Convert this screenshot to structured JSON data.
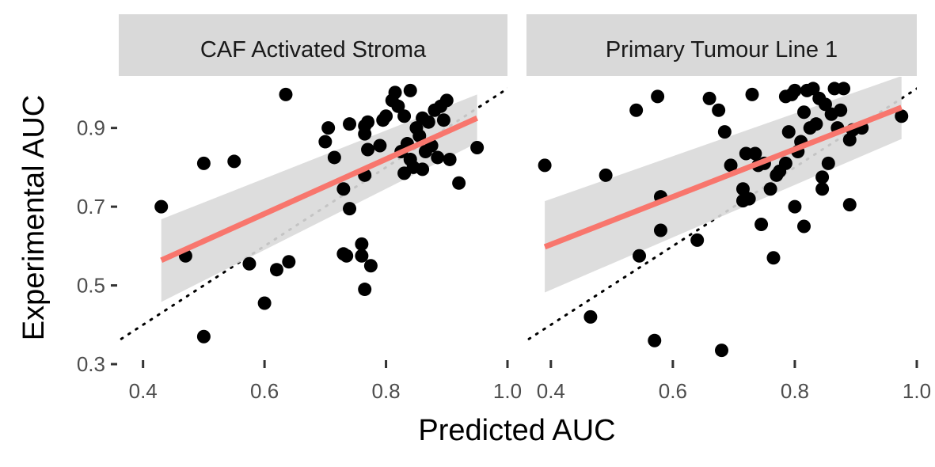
{
  "chart_data": {
    "type": "scatter",
    "xlabel": "Predicted AUC",
    "ylabel": "Experimental AUC",
    "xlim": [
      0.36,
      1.0
    ],
    "ylim": [
      0.28,
      1.03
    ],
    "x_ticks": [
      "0.4",
      "0.6",
      "0.8",
      "1.0"
    ],
    "y_ticks": [
      "0.3",
      "0.5",
      "0.7",
      "0.9"
    ],
    "grid": false,
    "reference_line": {
      "type": "identity",
      "style": "dotted",
      "color": "#000000"
    },
    "colors": {
      "points": "#000000",
      "fit_line": "#F8766D",
      "ribbon": "#D9D9D9",
      "strip_bg": "#D9D9D9"
    },
    "panels": [
      {
        "title": "CAF Activated Stroma",
        "fit": {
          "x": [
            0.43,
            0.95
          ],
          "y": [
            0.564,
            0.925
          ],
          "ci_low": [
            0.458,
            0.862
          ],
          "ci_high": [
            0.668,
            0.985
          ]
        },
        "points": [
          {
            "x": 0.43,
            "y": 0.7
          },
          {
            "x": 0.47,
            "y": 0.575
          },
          {
            "x": 0.5,
            "y": 0.37
          },
          {
            "x": 0.5,
            "y": 0.81
          },
          {
            "x": 0.55,
            "y": 0.815
          },
          {
            "x": 0.575,
            "y": 0.555
          },
          {
            "x": 0.6,
            "y": 0.455
          },
          {
            "x": 0.62,
            "y": 0.54
          },
          {
            "x": 0.635,
            "y": 0.985
          },
          {
            "x": 0.64,
            "y": 0.56
          },
          {
            "x": 0.7,
            "y": 0.865
          },
          {
            "x": 0.705,
            "y": 0.9
          },
          {
            "x": 0.715,
            "y": 0.825
          },
          {
            "x": 0.73,
            "y": 0.745
          },
          {
            "x": 0.73,
            "y": 0.58
          },
          {
            "x": 0.735,
            "y": 0.575
          },
          {
            "x": 0.74,
            "y": 0.91
          },
          {
            "x": 0.74,
            "y": 0.695
          },
          {
            "x": 0.76,
            "y": 0.605
          },
          {
            "x": 0.76,
            "y": 0.575
          },
          {
            "x": 0.765,
            "y": 0.905
          },
          {
            "x": 0.765,
            "y": 0.885
          },
          {
            "x": 0.765,
            "y": 0.78
          },
          {
            "x": 0.765,
            "y": 0.49
          },
          {
            "x": 0.77,
            "y": 0.915
          },
          {
            "x": 0.77,
            "y": 0.845
          },
          {
            "x": 0.775,
            "y": 0.55
          },
          {
            "x": 0.79,
            "y": 0.855
          },
          {
            "x": 0.795,
            "y": 0.92
          },
          {
            "x": 0.8,
            "y": 0.93
          },
          {
            "x": 0.81,
            "y": 0.97
          },
          {
            "x": 0.815,
            "y": 0.99
          },
          {
            "x": 0.82,
            "y": 0.955
          },
          {
            "x": 0.825,
            "y": 0.84
          },
          {
            "x": 0.83,
            "y": 0.785
          },
          {
            "x": 0.83,
            "y": 0.93
          },
          {
            "x": 0.835,
            "y": 0.86
          },
          {
            "x": 0.84,
            "y": 0.82
          },
          {
            "x": 0.84,
            "y": 0.995
          },
          {
            "x": 0.845,
            "y": 0.8
          },
          {
            "x": 0.85,
            "y": 0.9
          },
          {
            "x": 0.855,
            "y": 0.88
          },
          {
            "x": 0.86,
            "y": 0.925
          },
          {
            "x": 0.86,
            "y": 0.795
          },
          {
            "x": 0.865,
            "y": 0.84
          },
          {
            "x": 0.87,
            "y": 0.915
          },
          {
            "x": 0.875,
            "y": 0.855
          },
          {
            "x": 0.88,
            "y": 0.945
          },
          {
            "x": 0.885,
            "y": 0.825
          },
          {
            "x": 0.89,
            "y": 0.955
          },
          {
            "x": 0.895,
            "y": 0.92
          },
          {
            "x": 0.9,
            "y": 0.97
          },
          {
            "x": 0.905,
            "y": 0.82
          },
          {
            "x": 0.92,
            "y": 0.76
          },
          {
            "x": 0.95,
            "y": 0.85
          }
        ]
      },
      {
        "title": "Primary Tumour Line 1",
        "fit": {
          "x": [
            0.39,
            0.975
          ],
          "y": [
            0.598,
            0.952
          ],
          "ci_low": [
            0.482,
            0.872
          ],
          "ci_high": [
            0.714,
            1.032
          ]
        },
        "points": [
          {
            "x": 0.39,
            "y": 0.805
          },
          {
            "x": 0.465,
            "y": 0.42
          },
          {
            "x": 0.49,
            "y": 0.78
          },
          {
            "x": 0.54,
            "y": 0.945
          },
          {
            "x": 0.545,
            "y": 0.575
          },
          {
            "x": 0.57,
            "y": 0.36
          },
          {
            "x": 0.575,
            "y": 0.98
          },
          {
            "x": 0.58,
            "y": 0.725
          },
          {
            "x": 0.58,
            "y": 0.64
          },
          {
            "x": 0.64,
            "y": 0.615
          },
          {
            "x": 0.66,
            "y": 0.975
          },
          {
            "x": 0.675,
            "y": 0.945
          },
          {
            "x": 0.68,
            "y": 0.335
          },
          {
            "x": 0.685,
            "y": 0.89
          },
          {
            "x": 0.695,
            "y": 0.805
          },
          {
            "x": 0.715,
            "y": 0.745
          },
          {
            "x": 0.715,
            "y": 0.715
          },
          {
            "x": 0.72,
            "y": 0.835
          },
          {
            "x": 0.725,
            "y": 0.72
          },
          {
            "x": 0.73,
            "y": 0.985
          },
          {
            "x": 0.735,
            "y": 0.835
          },
          {
            "x": 0.74,
            "y": 0.805
          },
          {
            "x": 0.745,
            "y": 0.655
          },
          {
            "x": 0.75,
            "y": 0.81
          },
          {
            "x": 0.76,
            "y": 0.745
          },
          {
            "x": 0.765,
            "y": 0.57
          },
          {
            "x": 0.77,
            "y": 0.78
          },
          {
            "x": 0.775,
            "y": 0.79
          },
          {
            "x": 0.785,
            "y": 0.98
          },
          {
            "x": 0.785,
            "y": 0.81
          },
          {
            "x": 0.79,
            "y": 0.89
          },
          {
            "x": 0.795,
            "y": 0.985
          },
          {
            "x": 0.8,
            "y": 0.995
          },
          {
            "x": 0.8,
            "y": 0.7
          },
          {
            "x": 0.805,
            "y": 0.84
          },
          {
            "x": 0.81,
            "y": 0.865
          },
          {
            "x": 0.815,
            "y": 0.94
          },
          {
            "x": 0.815,
            "y": 0.65
          },
          {
            "x": 0.82,
            "y": 0.995
          },
          {
            "x": 0.825,
            "y": 0.9
          },
          {
            "x": 0.83,
            "y": 1.0
          },
          {
            "x": 0.835,
            "y": 0.91
          },
          {
            "x": 0.84,
            "y": 0.975
          },
          {
            "x": 0.845,
            "y": 0.775
          },
          {
            "x": 0.845,
            "y": 0.745
          },
          {
            "x": 0.85,
            "y": 0.96
          },
          {
            "x": 0.855,
            "y": 0.81
          },
          {
            "x": 0.86,
            "y": 0.935
          },
          {
            "x": 0.865,
            "y": 1.0
          },
          {
            "x": 0.87,
            "y": 0.9
          },
          {
            "x": 0.875,
            "y": 0.945
          },
          {
            "x": 0.88,
            "y": 1.0
          },
          {
            "x": 0.89,
            "y": 0.705
          },
          {
            "x": 0.89,
            "y": 0.87
          },
          {
            "x": 0.895,
            "y": 0.895
          },
          {
            "x": 0.91,
            "y": 0.9
          },
          {
            "x": 0.975,
            "y": 0.93
          }
        ]
      }
    ]
  }
}
